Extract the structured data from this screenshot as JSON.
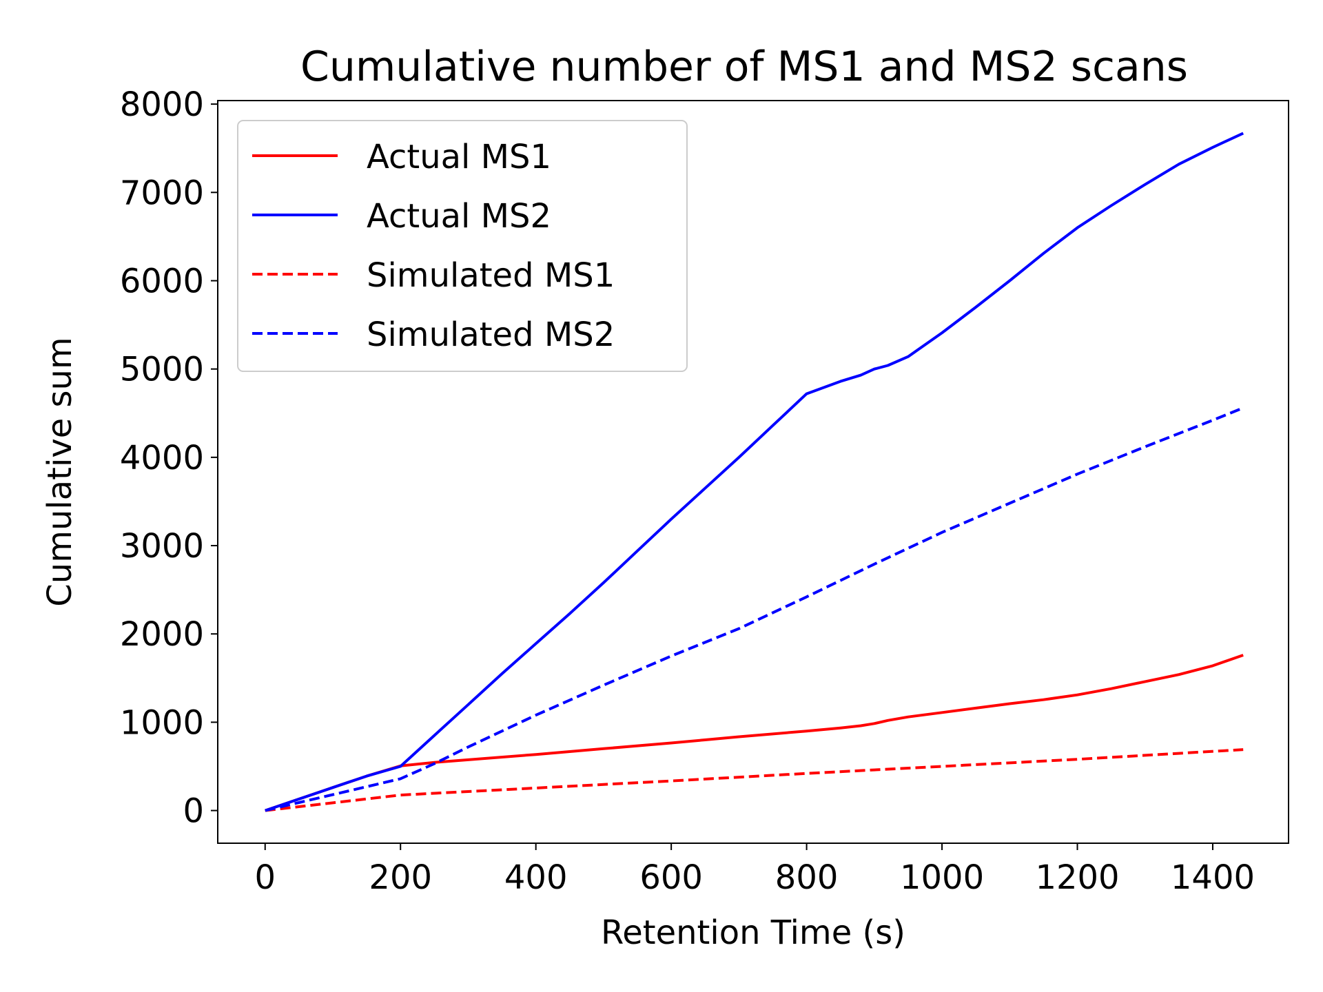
{
  "chart_data": {
    "type": "line",
    "title": "Cumulative number of MS1 and MS2 scans",
    "xlabel": "Retention Time (s)",
    "ylabel": "Cumulative sum",
    "xlim": [
      -70,
      1512
    ],
    "ylim": [
      -370,
      8040
    ],
    "xticks": [
      0,
      200,
      400,
      600,
      800,
      1000,
      1200,
      1400
    ],
    "yticks": [
      0,
      1000,
      2000,
      3000,
      4000,
      5000,
      6000,
      7000,
      8000
    ],
    "grid": false,
    "legend_position": "top-left",
    "series": [
      {
        "name": "Actual MS1",
        "color": "#ff0000",
        "dash": "solid",
        "x": [
          0,
          50,
          100,
          150,
          200,
          250,
          300,
          400,
          500,
          600,
          650,
          700,
          800,
          850,
          880,
          900,
          920,
          950,
          1000,
          1050,
          1100,
          1150,
          1200,
          1250,
          1300,
          1350,
          1400,
          1445
        ],
        "y": [
          0,
          130,
          260,
          390,
          505,
          545,
          575,
          635,
          700,
          765,
          800,
          835,
          900,
          935,
          960,
          985,
          1020,
          1060,
          1110,
          1160,
          1210,
          1255,
          1310,
          1380,
          1460,
          1540,
          1640,
          1760
        ]
      },
      {
        "name": "Actual MS2",
        "color": "#0000ff",
        "dash": "solid",
        "x": [
          0,
          50,
          100,
          150,
          200,
          250,
          300,
          350,
          400,
          450,
          500,
          550,
          600,
          650,
          700,
          750,
          800,
          850,
          880,
          900,
          920,
          950,
          1000,
          1050,
          1100,
          1150,
          1200,
          1250,
          1300,
          1350,
          1400,
          1445
        ],
        "y": [
          0,
          130,
          260,
          390,
          500,
          850,
          1200,
          1550,
          1890,
          2230,
          2580,
          2940,
          3300,
          3650,
          4000,
          4360,
          4720,
          4860,
          4930,
          5000,
          5040,
          5140,
          5410,
          5700,
          6000,
          6310,
          6600,
          6850,
          7090,
          7320,
          7510,
          7670
        ]
      },
      {
        "name": "Simulated MS1",
        "color": "#ff0000",
        "dash": "dashed",
        "x": [
          0,
          200,
          400,
          600,
          800,
          1000,
          1200,
          1445
        ],
        "y": [
          0,
          175,
          255,
          335,
          420,
          500,
          580,
          690
        ]
      },
      {
        "name": "Simulated MS2",
        "color": "#0000ff",
        "dash": "dashed",
        "x": [
          0,
          50,
          100,
          150,
          200,
          250,
          300,
          400,
          500,
          600,
          700,
          800,
          900,
          1000,
          1100,
          1200,
          1300,
          1400,
          1445
        ],
        "y": [
          0,
          90,
          180,
          270,
          360,
          530,
          720,
          1080,
          1420,
          1750,
          2060,
          2420,
          2790,
          3150,
          3480,
          3810,
          4120,
          4420,
          4560
        ]
      }
    ]
  }
}
